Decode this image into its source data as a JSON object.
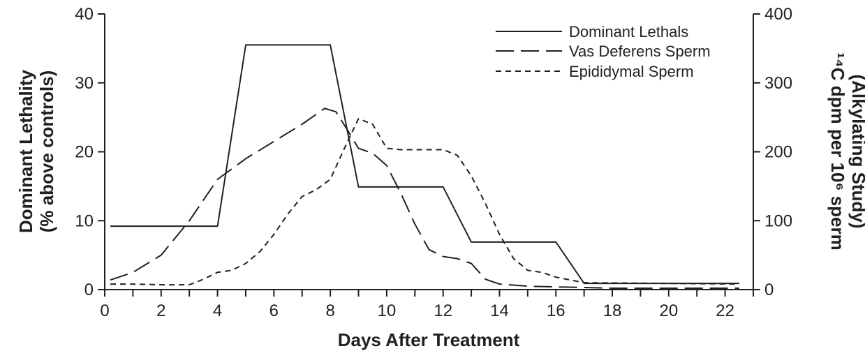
{
  "chart_data": {
    "type": "line",
    "xlabel": "Days After Treatment",
    "ylabel_left_line1": "Dominant Lethality",
    "ylabel_left_line2": "(% above controls)",
    "ylabel_right_line1": "¹⁴C dpm per 10⁶ sperm",
    "ylabel_right_line2": "(Alkylating Study)",
    "xlim": [
      0,
      23
    ],
    "x_ticks": [
      "0",
      "2",
      "4",
      "6",
      "8",
      "10",
      "12",
      "14",
      "16",
      "18",
      "20",
      "22"
    ],
    "ylim_left": [
      0,
      40
    ],
    "y_ticks_left": [
      "0",
      "10",
      "20",
      "30",
      "40"
    ],
    "ylim_right": [
      0,
      400
    ],
    "y_ticks_right": [
      "0",
      "100",
      "200",
      "300",
      "400"
    ],
    "grid": false,
    "legend_position": "top-right",
    "series": [
      {
        "name": "Dominant Lethals",
        "axis": "left",
        "style": "solid",
        "x": [
          0.2,
          4.0,
          5.0,
          8.0,
          9.0,
          12.0,
          13.0,
          16.0,
          17.0,
          22.5
        ],
        "y": [
          9.2,
          9.2,
          35.5,
          35.5,
          14.9,
          14.9,
          6.9,
          6.9,
          0.9,
          0.9
        ]
      },
      {
        "name": "Vas Deferens Sperm",
        "axis": "right",
        "style": "long-dash",
        "x": [
          0.2,
          1.0,
          2.0,
          3.0,
          4.0,
          5.0,
          6.0,
          7.0,
          7.8,
          8.2,
          8.6,
          9.0,
          9.5,
          10.0,
          10.5,
          11.0,
          11.5,
          12.0,
          12.5,
          13.0,
          13.5,
          14.0,
          15.0,
          16.0,
          17.0,
          18.0,
          22.5
        ],
        "y": [
          14,
          25,
          50,
          100,
          160,
          190,
          215,
          240,
          263,
          258,
          232,
          205,
          198,
          180,
          140,
          95,
          58,
          48,
          45,
          38,
          15,
          8,
          5,
          4,
          3,
          2,
          2
        ]
      },
      {
        "name": "Epididymal Sperm",
        "axis": "right",
        "style": "short-dash",
        "x": [
          0.2,
          1.0,
          2.0,
          3.0,
          3.5,
          4.0,
          4.5,
          5.0,
          5.5,
          6.0,
          6.5,
          7.0,
          7.5,
          8.0,
          8.5,
          9.0,
          9.5,
          10.0,
          10.5,
          11.0,
          12.0,
          12.5,
          13.0,
          13.5,
          14.0,
          14.5,
          15.0,
          15.5,
          16.0,
          17.0,
          22.5
        ],
        "y": [
          8,
          8,
          7,
          7,
          15,
          25,
          28,
          38,
          55,
          80,
          110,
          135,
          145,
          160,
          205,
          248,
          240,
          205,
          203,
          203,
          203,
          195,
          165,
          125,
          80,
          45,
          28,
          25,
          18,
          10,
          8
        ]
      }
    ]
  }
}
